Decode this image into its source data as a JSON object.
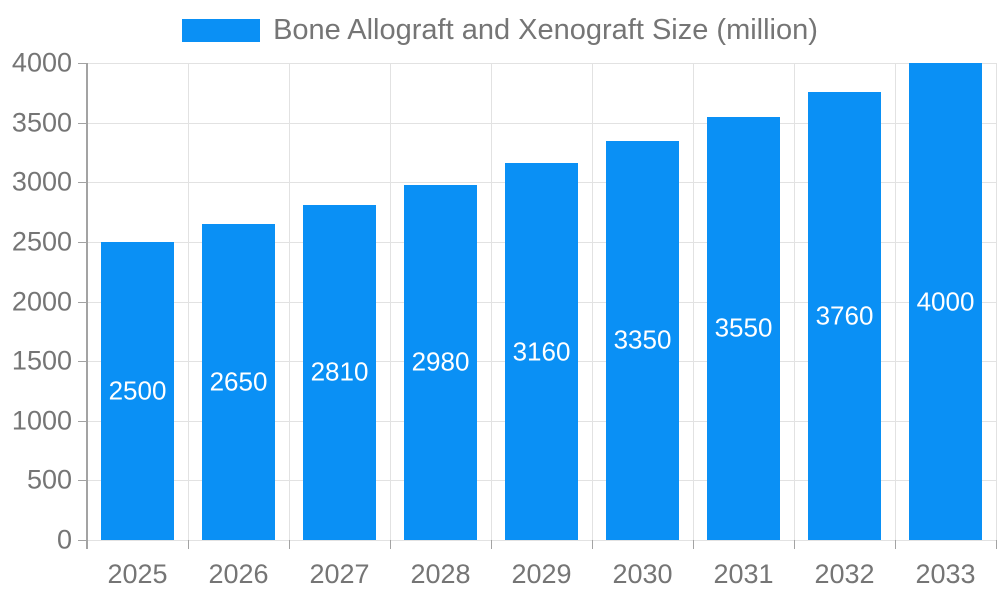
{
  "legend": {
    "label": "Bone Allograft and Xenograft Size (million)"
  },
  "chart_data": {
    "type": "bar",
    "title": "Bone Allograft and Xenograft Size (million)",
    "categories": [
      "2025",
      "2026",
      "2027",
      "2028",
      "2029",
      "2030",
      "2031",
      "2032",
      "2033"
    ],
    "values": [
      2500,
      2650,
      2810,
      2980,
      3160,
      3350,
      3550,
      3760,
      4000
    ],
    "value_labels": [
      "2500",
      "2650",
      "2810",
      "2980",
      "3160",
      "3350",
      "3550",
      "3760",
      "4000"
    ],
    "y_tick_labels": [
      "0",
      "500",
      "1000",
      "1500",
      "2000",
      "2500",
      "3000",
      "3500",
      "4000"
    ],
    "y_ticks": [
      0,
      500,
      1000,
      1500,
      2000,
      2500,
      3000,
      3500,
      4000
    ],
    "ylim": [
      0,
      4000
    ],
    "xlabel": "",
    "ylabel": "",
    "grid": true,
    "legend_position": "top",
    "colors": {
      "bar": "#0a90f5",
      "value_label": "#ffffff",
      "grid": "#e2e2e2",
      "axis": "#a3a3a3",
      "tick_text": "#757575",
      "legend_text": "#757575",
      "background": "#ffffff"
    }
  }
}
